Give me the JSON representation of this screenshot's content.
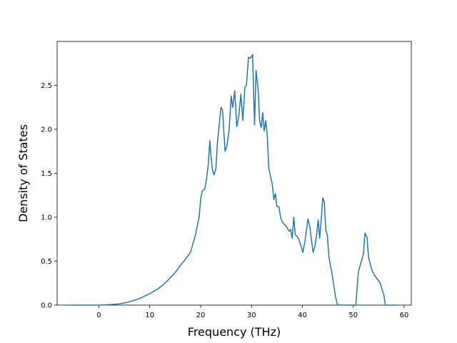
{
  "chart_data": {
    "type": "line",
    "title": "",
    "xlabel": "Frequency (THz)",
    "ylabel": "Density of States",
    "xlim": [
      -8.2,
      61.4
    ],
    "ylim": [
      0.0,
      3.0
    ],
    "xticks": [
      0,
      10,
      20,
      30,
      40,
      50,
      60
    ],
    "yticks": [
      0.0,
      0.5,
      1.0,
      1.5,
      2.0,
      2.5
    ],
    "xtick_labels": [
      "0",
      "10",
      "20",
      "30",
      "40",
      "50",
      "60"
    ],
    "ytick_labels": [
      "0.0",
      "0.5",
      "1.0",
      "1.5",
      "2.0",
      "2.5"
    ],
    "grid": false,
    "color": "#1f77b4",
    "series": [
      {
        "points": [
          [
            -5.4,
            0.0
          ],
          [
            0.0,
            0.0
          ],
          [
            2.0,
            0.005
          ],
          [
            4.0,
            0.015
          ],
          [
            5.5,
            0.03
          ],
          [
            7.0,
            0.055
          ],
          [
            8.0,
            0.075
          ],
          [
            10.0,
            0.13
          ],
          [
            11.5,
            0.18
          ],
          [
            13.0,
            0.25
          ],
          [
            14.0,
            0.31
          ],
          [
            15.0,
            0.37
          ],
          [
            16.0,
            0.45
          ],
          [
            17.0,
            0.52
          ],
          [
            18.0,
            0.6
          ],
          [
            19.0,
            0.8
          ],
          [
            19.7,
            1.0
          ],
          [
            20.0,
            1.2
          ],
          [
            20.3,
            1.3
          ],
          [
            20.8,
            1.32
          ],
          [
            21.2,
            1.45
          ],
          [
            21.5,
            1.6
          ],
          [
            21.8,
            1.87
          ],
          [
            22.0,
            1.72
          ],
          [
            22.3,
            1.55
          ],
          [
            22.6,
            1.48
          ],
          [
            23.0,
            1.55
          ],
          [
            23.3,
            1.85
          ],
          [
            23.7,
            2.08
          ],
          [
            24.0,
            2.25
          ],
          [
            24.3,
            2.22
          ],
          [
            24.8,
            1.75
          ],
          [
            25.2,
            1.82
          ],
          [
            25.6,
            2.0
          ],
          [
            26.0,
            2.38
          ],
          [
            26.3,
            2.25
          ],
          [
            26.7,
            2.44
          ],
          [
            27.1,
            2.03
          ],
          [
            27.5,
            2.15
          ],
          [
            27.9,
            2.4
          ],
          [
            28.3,
            2.1
          ],
          [
            28.7,
            2.48
          ],
          [
            29.0,
            2.5
          ],
          [
            29.4,
            2.82
          ],
          [
            29.8,
            2.81
          ],
          [
            30.2,
            2.85
          ],
          [
            30.6,
            2.05
          ],
          [
            30.9,
            2.67
          ],
          [
            31.3,
            2.45
          ],
          [
            31.6,
            2.1
          ],
          [
            31.9,
            2.02
          ],
          [
            32.2,
            2.19
          ],
          [
            32.5,
            1.98
          ],
          [
            32.8,
            2.1
          ],
          [
            33.1,
            1.93
          ],
          [
            33.4,
            1.55
          ],
          [
            33.8,
            1.45
          ],
          [
            34.1,
            1.37
          ],
          [
            34.4,
            1.2
          ],
          [
            34.7,
            1.27
          ],
          [
            35.0,
            1.12
          ],
          [
            35.4,
            1.12
          ],
          [
            35.7,
            1.0
          ],
          [
            36.0,
            0.95
          ],
          [
            36.4,
            0.92
          ],
          [
            36.8,
            0.9
          ],
          [
            37.1,
            0.87
          ],
          [
            37.4,
            0.84
          ],
          [
            37.7,
            0.86
          ],
          [
            38.0,
            0.76
          ],
          [
            38.3,
            1.0
          ],
          [
            38.6,
            0.8
          ],
          [
            39.0,
            0.78
          ],
          [
            39.4,
            0.73
          ],
          [
            39.8,
            0.66
          ],
          [
            40.1,
            0.6
          ],
          [
            40.5,
            0.73
          ],
          [
            40.8,
            0.85
          ],
          [
            41.1,
            0.98
          ],
          [
            41.5,
            0.88
          ],
          [
            41.8,
            0.73
          ],
          [
            42.1,
            0.6
          ],
          [
            42.5,
            0.68
          ],
          [
            42.8,
            0.8
          ],
          [
            43.1,
            0.97
          ],
          [
            43.4,
            0.76
          ],
          [
            43.7,
            0.98
          ],
          [
            44.0,
            1.22
          ],
          [
            44.3,
            1.18
          ],
          [
            44.6,
            0.85
          ],
          [
            44.9,
            0.8
          ],
          [
            45.2,
            0.55
          ],
          [
            45.5,
            0.45
          ],
          [
            45.8,
            0.37
          ],
          [
            46.1,
            0.25
          ],
          [
            46.5,
            0.1
          ],
          [
            46.8,
            0.02
          ],
          [
            47.0,
            0.0
          ],
          [
            50.5,
            0.0
          ],
          [
            51.0,
            0.38
          ],
          [
            51.5,
            0.48
          ],
          [
            52.0,
            0.58
          ],
          [
            52.3,
            0.82
          ],
          [
            52.7,
            0.77
          ],
          [
            53.0,
            0.55
          ],
          [
            53.4,
            0.45
          ],
          [
            53.8,
            0.38
          ],
          [
            54.3,
            0.33
          ],
          [
            54.8,
            0.29
          ],
          [
            55.3,
            0.25
          ],
          [
            55.7,
            0.17
          ],
          [
            56.0,
            0.12
          ],
          [
            56.3,
            0.0
          ],
          [
            58.4,
            0.0
          ]
        ]
      }
    ]
  }
}
